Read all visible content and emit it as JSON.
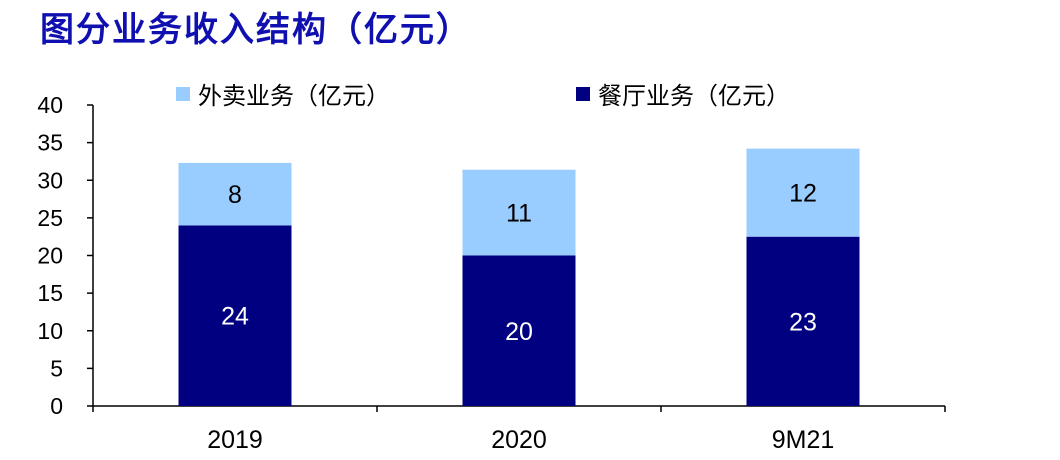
{
  "title": "图分业务收入结构（亿元）",
  "chart_data": {
    "type": "bar",
    "stacked": true,
    "categories": [
      "2019",
      "2020",
      "9M21"
    ],
    "series": [
      {
        "name": "餐厅业务（亿元）",
        "values": [
          24,
          20,
          22.5
        ],
        "labels": [
          "24",
          "20",
          "23"
        ],
        "color": "#000080",
        "label_color": "#ffffff"
      },
      {
        "name": "外卖业务（亿元）",
        "values": [
          8.3,
          11.4,
          11.7
        ],
        "labels": [
          "8",
          "11",
          "12"
        ],
        "color": "#99ccff",
        "label_color": "#000000"
      }
    ],
    "legend_order": [
      1,
      0
    ],
    "ylim": [
      0,
      40
    ],
    "yticks": [
      0,
      5,
      10,
      15,
      20,
      25,
      30,
      35,
      40
    ],
    "legend_position": "top",
    "grid": false
  }
}
